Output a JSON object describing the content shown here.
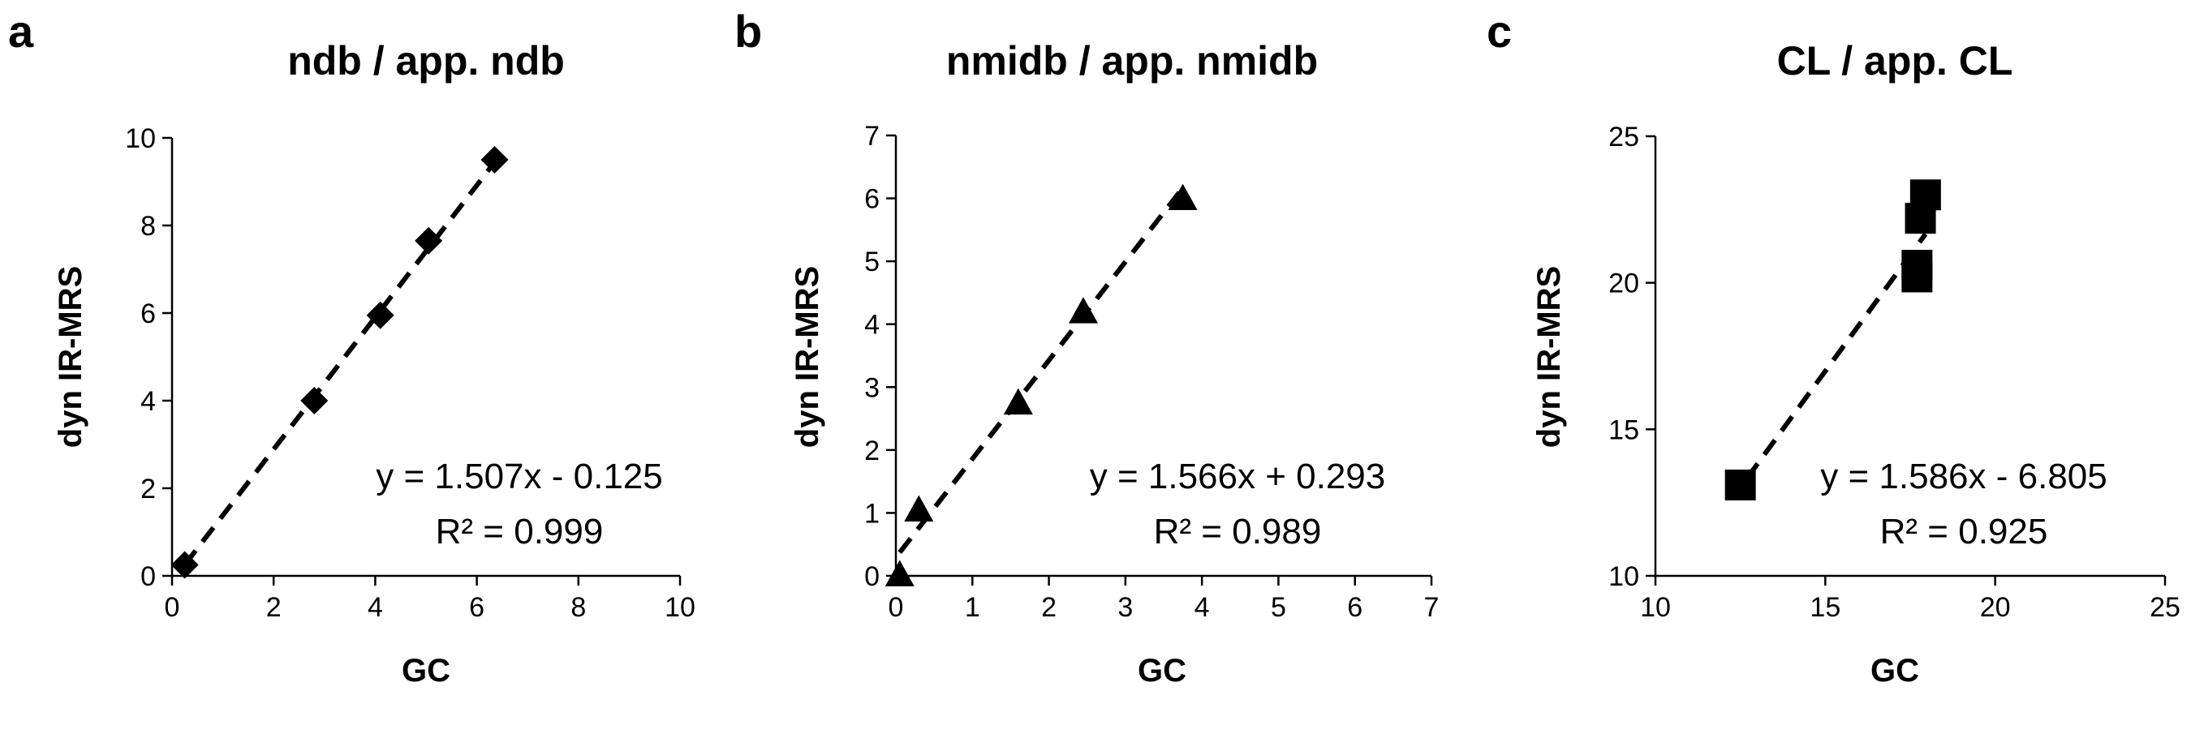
{
  "chart_data": [
    {
      "type": "scatter",
      "panel": "a",
      "title": "ndb / app. ndb",
      "xlabel": "GC",
      "ylabel": "dyn IR-MRS",
      "xlim": [
        0,
        10
      ],
      "ylim": [
        0,
        10
      ],
      "xticks": [
        "0",
        "2",
        "4",
        "6",
        "8",
        "10"
      ],
      "yticks": [
        "0",
        "2",
        "4",
        "6",
        "8",
        "10"
      ],
      "marker": "diamond",
      "points": [
        [
          0.25,
          0.25
        ],
        [
          2.8,
          4.0
        ],
        [
          4.1,
          5.95
        ],
        [
          5.05,
          7.65
        ],
        [
          6.35,
          9.5
        ]
      ],
      "trendline": {
        "slope": 1.507,
        "intercept": -0.125,
        "x_range": [
          0.25,
          6.35
        ]
      },
      "equation": "y = 1.507x - 0.125",
      "r_squared": "R² = 0.999",
      "grid": false,
      "legend": "none"
    },
    {
      "type": "scatter",
      "panel": "b",
      "title": "nmidb / app. nmidb",
      "xlabel": "GC",
      "ylabel": "dyn IR-MRS",
      "xlim": [
        0,
        7
      ],
      "ylim": [
        0,
        7
      ],
      "xticks": [
        "0",
        "1",
        "2",
        "3",
        "4",
        "5",
        "6",
        "7"
      ],
      "yticks": [
        "0",
        "1",
        "2",
        "3",
        "4",
        "5",
        "6",
        "7"
      ],
      "marker": "triangle",
      "points": [
        [
          0.05,
          0.02
        ],
        [
          0.3,
          1.05
        ],
        [
          1.6,
          2.75
        ],
        [
          2.45,
          4.2
        ],
        [
          3.75,
          6.0
        ]
      ],
      "trendline": {
        "slope": 1.566,
        "intercept": 0.293,
        "x_range": [
          0.05,
          3.75
        ]
      },
      "equation": "y = 1.566x + 0.293",
      "r_squared": "R² = 0.989",
      "grid": false,
      "legend": "none"
    },
    {
      "type": "scatter",
      "panel": "c",
      "title": "CL / app. CL",
      "xlabel": "GC",
      "ylabel": "dyn IR-MRS",
      "xlim": [
        10,
        25
      ],
      "ylim": [
        10,
        25
      ],
      "xticks": [
        "10",
        "15",
        "20",
        "25"
      ],
      "yticks": [
        "10",
        "15",
        "20",
        "25"
      ],
      "marker": "square",
      "points": [
        [
          12.5,
          13.1
        ],
        [
          17.7,
          20.2
        ],
        [
          17.7,
          20.6
        ],
        [
          17.8,
          22.2
        ],
        [
          17.95,
          23.0
        ]
      ],
      "trendline": {
        "slope": 1.586,
        "intercept": -6.805,
        "x_range": [
          12.7,
          17.95
        ]
      },
      "equation": "y = 1.586x - 6.805",
      "r_squared": "R² = 0.925",
      "grid": false,
      "legend": "none"
    }
  ]
}
